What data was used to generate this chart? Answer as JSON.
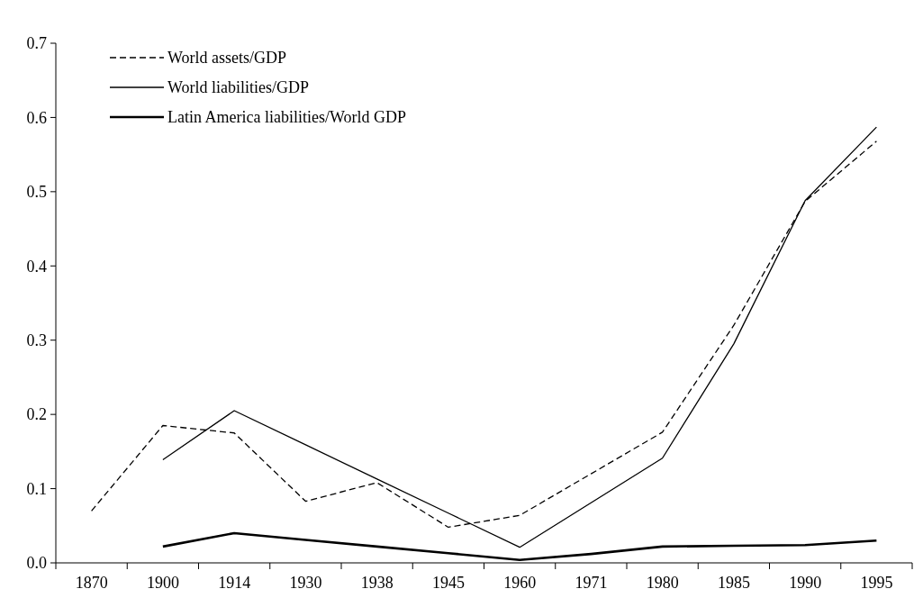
{
  "chart_data": {
    "type": "line",
    "categories": [
      "1870",
      "1900",
      "1914",
      "1930",
      "1938",
      "1945",
      "1960",
      "1971",
      "1980",
      "1985",
      "1990",
      "1995"
    ],
    "ylim": [
      0,
      0.7
    ],
    "yticks": [
      {
        "value": 0,
        "label": "0.0"
      },
      {
        "value": 0.1,
        "label": "0.1"
      },
      {
        "value": 0.2,
        "label": "0.2"
      },
      {
        "value": 0.3,
        "label": "0.3"
      },
      {
        "value": 0.4,
        "label": "0.4"
      },
      {
        "value": 0.5,
        "label": "0.5"
      },
      {
        "value": 0.6,
        "label": "0.6"
      },
      {
        "value": 0.7,
        "label": "0.7"
      }
    ],
    "grid": false,
    "legend": "top left",
    "marker": "none",
    "series": [
      {
        "name": "World assets/GDP",
        "color": "#000000",
        "line_style": "dashed",
        "values": [
          0.07,
          0.185,
          0.175,
          0.083,
          0.108,
          0.048,
          0.064,
          0.12,
          0.176,
          0.32,
          0.487,
          0.568
        ]
      },
      {
        "name": "World liabilities/GDP",
        "color": "#000000",
        "line_style": "solid",
        "values": [
          null,
          0.139,
          0.205,
          0.159,
          0.113,
          0.067,
          0.021,
          0.081,
          0.141,
          0.295,
          0.488,
          0.587
        ]
      },
      {
        "name": "Latin America liabilities/World GDP",
        "color": "#000000",
        "line_style": "solid",
        "values": [
          null,
          0.022,
          0.04,
          0.031,
          0.022,
          0.013,
          0.004,
          0.012,
          0.022,
          0.023,
          0.024,
          0.03
        ]
      }
    ]
  }
}
